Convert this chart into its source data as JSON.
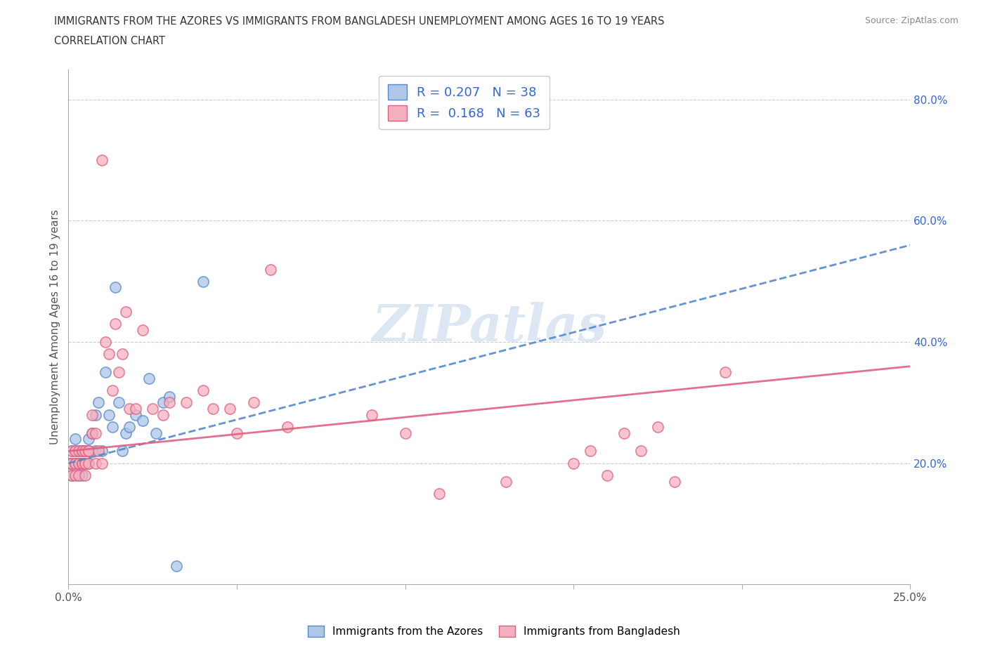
{
  "title_line1": "IMMIGRANTS FROM THE AZORES VS IMMIGRANTS FROM BANGLADESH UNEMPLOYMENT AMONG AGES 16 TO 19 YEARS",
  "title_line2": "CORRELATION CHART",
  "source": "Source: ZipAtlas.com",
  "ylabel": "Unemployment Among Ages 16 to 19 years",
  "xlim": [
    0.0,
    0.25
  ],
  "ylim": [
    0.0,
    0.85
  ],
  "azores_color": "#aec6e8",
  "azores_edge_color": "#5588cc",
  "bangladesh_color": "#f5b0c0",
  "bangladesh_edge_color": "#e06080",
  "azores_line_color": "#5588cc",
  "bangladesh_line_color": "#e06080",
  "R_azores": 0.207,
  "N_azores": 38,
  "R_bangladesh": 0.168,
  "N_bangladesh": 63,
  "legend_label_azores": "Immigrants from the Azores",
  "legend_label_bangladesh": "Immigrants from Bangladesh",
  "watermark": "ZIPatlas",
  "legend_text_color": "#3366dd",
  "right_axis_color": "#3366dd",
  "title_color": "#333333",
  "source_color": "#888888",
  "ylabel_color": "#555555",
  "azores_x": [
    0.0005,
    0.001,
    0.001,
    0.002,
    0.002,
    0.002,
    0.003,
    0.003,
    0.003,
    0.004,
    0.004,
    0.004,
    0.005,
    0.005,
    0.006,
    0.006,
    0.006,
    0.007,
    0.008,
    0.008,
    0.009,
    0.01,
    0.011,
    0.012,
    0.013,
    0.014,
    0.015,
    0.016,
    0.017,
    0.018,
    0.02,
    0.022,
    0.024,
    0.026,
    0.028,
    0.03,
    0.032,
    0.04
  ],
  "azores_y": [
    0.2,
    0.22,
    0.18,
    0.22,
    0.24,
    0.2,
    0.2,
    0.22,
    0.18,
    0.22,
    0.2,
    0.18,
    0.22,
    0.2,
    0.2,
    0.22,
    0.24,
    0.25,
    0.22,
    0.28,
    0.3,
    0.22,
    0.35,
    0.28,
    0.26,
    0.49,
    0.3,
    0.22,
    0.25,
    0.26,
    0.28,
    0.27,
    0.34,
    0.25,
    0.3,
    0.31,
    0.03,
    0.5
  ],
  "bangladesh_x": [
    0.0005,
    0.001,
    0.001,
    0.001,
    0.002,
    0.002,
    0.002,
    0.002,
    0.003,
    0.003,
    0.003,
    0.003,
    0.004,
    0.004,
    0.004,
    0.004,
    0.005,
    0.005,
    0.005,
    0.005,
    0.006,
    0.006,
    0.006,
    0.007,
    0.007,
    0.008,
    0.008,
    0.009,
    0.01,
    0.01,
    0.011,
    0.012,
    0.013,
    0.014,
    0.015,
    0.016,
    0.017,
    0.018,
    0.02,
    0.022,
    0.025,
    0.028,
    0.03,
    0.035,
    0.04,
    0.043,
    0.048,
    0.05,
    0.055,
    0.06,
    0.065,
    0.09,
    0.1,
    0.11,
    0.13,
    0.15,
    0.155,
    0.16,
    0.165,
    0.17,
    0.175,
    0.18,
    0.195
  ],
  "bangladesh_y": [
    0.2,
    0.2,
    0.22,
    0.18,
    0.2,
    0.22,
    0.18,
    0.2,
    0.2,
    0.22,
    0.18,
    0.2,
    0.2,
    0.22,
    0.2,
    0.22,
    0.2,
    0.22,
    0.2,
    0.18,
    0.22,
    0.2,
    0.22,
    0.25,
    0.28,
    0.2,
    0.25,
    0.22,
    0.2,
    0.7,
    0.4,
    0.38,
    0.32,
    0.43,
    0.35,
    0.38,
    0.45,
    0.29,
    0.29,
    0.42,
    0.29,
    0.28,
    0.3,
    0.3,
    0.32,
    0.29,
    0.29,
    0.25,
    0.3,
    0.52,
    0.26,
    0.28,
    0.25,
    0.15,
    0.17,
    0.2,
    0.22,
    0.18,
    0.25,
    0.22,
    0.26,
    0.17,
    0.35
  ],
  "az_trend_x0": 0.0,
  "az_trend_x1": 0.25,
  "az_trend_y0": 0.2,
  "az_trend_y1": 0.56,
  "bd_trend_x0": 0.0,
  "bd_trend_x1": 0.25,
  "bd_trend_y0": 0.22,
  "bd_trend_y1": 0.36
}
